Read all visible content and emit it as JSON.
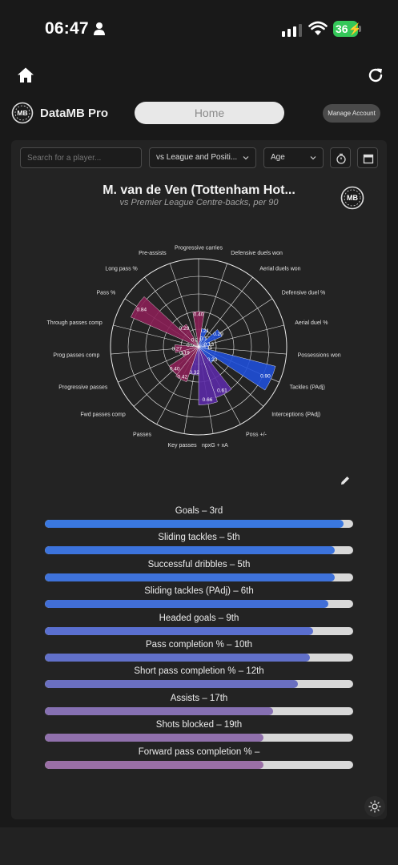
{
  "status": {
    "time": "06:47",
    "battery": "36"
  },
  "brand": {
    "name": "DataMB Pro"
  },
  "nav": {
    "home_label": "Home",
    "manage_label": "Manage Account"
  },
  "controls": {
    "search_placeholder": "Search for a player...",
    "comparison_select": "vs League and Positi...",
    "age_select": "Age"
  },
  "chart": {
    "title": "M. van de Ven (Tottenham Hot...",
    "subtitle": "vs Premier League Centre-backs, per 90"
  },
  "chart_data": {
    "type": "polar-bar",
    "rlim": [
      0,
      1
    ],
    "grid": true,
    "categories": [
      "Defensive duels won",
      "Aerial duels won",
      "Defensive duel %",
      "Aerial duel %",
      "Possessions won",
      "Tackles (PAdj)",
      "Interceptions (PAdj)",
      "Poss +/-",
      "npxG + xA",
      "Key passes",
      "Passes",
      "Fwd passes comp",
      "Progressive passes",
      "Prog passes comp",
      "Through passes comp",
      "Pass %",
      "Long pass %",
      "Pre-assists",
      "Progressive carries"
    ],
    "values": [
      0.21,
      0.13,
      0.29,
      0.13,
      0.11,
      0.9,
      0.23,
      0.61,
      0.66,
      0.32,
      0.42,
      0.4,
      0.19,
      0.27,
      0.0,
      0.84,
      0.29,
      0.0,
      0.4
    ],
    "groups": [
      "defending",
      "defending",
      "defending",
      "defending",
      "defending",
      "defending",
      "defending",
      "attacking",
      "attacking",
      "attacking",
      "passing",
      "passing",
      "passing",
      "passing",
      "passing",
      "passing",
      "passing",
      "passing",
      "passing"
    ],
    "colors": {
      "defending": "#1f4fd8",
      "attacking": "#5b2aa6",
      "passing": "#8a1f55"
    }
  },
  "rankings": [
    {
      "label": "Goals – 3rd",
      "value": 0.97,
      "color": "#3a78e0"
    },
    {
      "label": "Sliding tackles – 5th",
      "value": 0.94,
      "color": "#3c73dc"
    },
    {
      "label": "Successful dribbles – 5th",
      "value": 0.94,
      "color": "#3e72da"
    },
    {
      "label": "Sliding tackles (PAdj) – 6th",
      "value": 0.92,
      "color": "#416ed6"
    },
    {
      "label": "Headed goals – 9th",
      "value": 0.87,
      "color": "#5a6fcf"
    },
    {
      "label": "Pass completion % – 10th",
      "value": 0.86,
      "color": "#6170c9"
    },
    {
      "label": "Short pass completion % – 12th",
      "value": 0.82,
      "color": "#6a6fc0"
    },
    {
      "label": "Assists – 17th",
      "value": 0.74,
      "color": "#8670b2"
    },
    {
      "label": "Shots blocked – 19th",
      "value": 0.71,
      "color": "#9070ac"
    },
    {
      "label": "Forward pass completion % –",
      "value": 0.71,
      "color": "#9a6fa6"
    }
  ]
}
